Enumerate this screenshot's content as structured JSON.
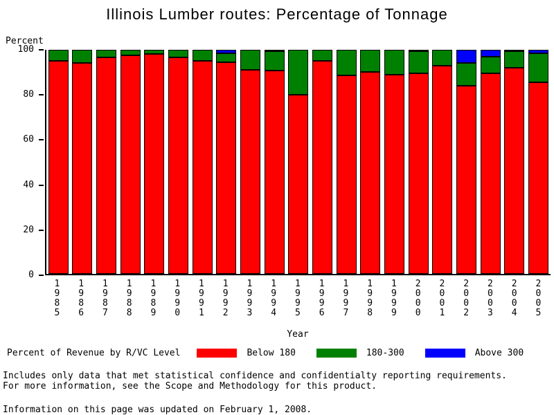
{
  "title": "Illinois Lumber routes: Percentage of Tonnage",
  "chart_data": {
    "type": "bar",
    "stacked": true,
    "title": "Illinois Lumber routes: Percentage of Tonnage",
    "ylabel": "Percent",
    "xlabel": "Year",
    "ylim": [
      0,
      100
    ],
    "yticks": [
      0,
      20,
      40,
      60,
      80,
      100
    ],
    "grid": false,
    "legend_position": "bottom",
    "legend_title": "Percent of Revenue by R/VC Level",
    "categories": [
      "1985",
      "1986",
      "1987",
      "1988",
      "1989",
      "1990",
      "1991",
      "1992",
      "1993",
      "1994",
      "1995",
      "1996",
      "1997",
      "1998",
      "1999",
      "2000",
      "2001",
      "2002",
      "2003",
      "2004",
      "2005"
    ],
    "series": [
      {
        "name": "Below 180",
        "color": "#ff0000",
        "values": [
          95,
          94,
          96.5,
          97.5,
          98,
          96.5,
          95,
          94.5,
          91,
          91,
          80,
          95,
          88.5,
          90,
          89,
          89.5,
          93,
          84,
          89.5,
          92,
          85.5
        ]
      },
      {
        "name": "180-300",
        "color": "#008000",
        "values": [
          5,
          6,
          3.5,
          2.5,
          2,
          3.5,
          5,
          4,
          9,
          8.5,
          20,
          5,
          11.5,
          10,
          11,
          10,
          7,
          10,
          7.5,
          7.5,
          13
        ]
      },
      {
        "name": "Above 300",
        "color": "#0000ff",
        "values": [
          0,
          0,
          0,
          0,
          0,
          0,
          0,
          1.5,
          0,
          0.5,
          0,
          0,
          0,
          0,
          0,
          0.5,
          0,
          6,
          3,
          0.5,
          1.5
        ]
      }
    ]
  },
  "footer": {
    "line1": "Includes only data that met statistical confidence and confidentialty reporting requirements.",
    "line2": "For more information, see the Scope and Methodology for this product.",
    "line3": "Information on this page was updated on February 1, 2008."
  }
}
